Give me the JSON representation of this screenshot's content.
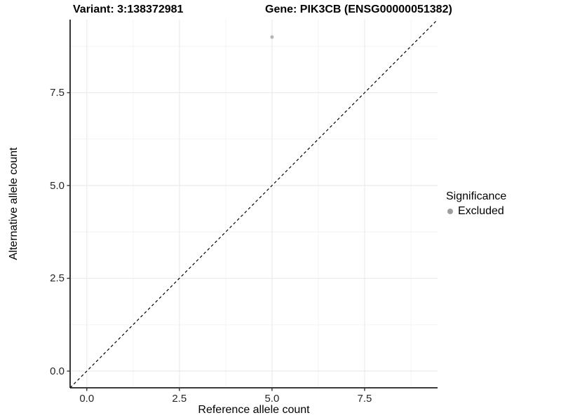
{
  "titles": {
    "variant": "Variant: 3:138372981",
    "gene": "Gene: PIK3CB (ENSG00000051382)"
  },
  "axes": {
    "x": {
      "label": "Reference allele count",
      "tick_labels": [
        "0.0",
        "2.5",
        "5.0",
        "7.5"
      ]
    },
    "y": {
      "label": "Alternative allele count",
      "tick_labels": [
        "0.0",
        "2.5",
        "5.0",
        "7.5"
      ]
    }
  },
  "legend": {
    "title": "Significance",
    "items": [
      {
        "label": "Excluded",
        "color": "#9e9e9e"
      }
    ]
  },
  "chart_data": {
    "type": "scatter",
    "title": "Variant: 3:138372981 | Gene: PIK3CB (ENSG00000051382)",
    "xlabel": "Reference allele count",
    "ylabel": "Alternative allele count",
    "xlim": [
      -0.45,
      9.47
    ],
    "ylim": [
      -0.45,
      9.47
    ],
    "x_ticks": [
      0.0,
      2.5,
      5.0,
      7.5
    ],
    "y_ticks": [
      0.0,
      2.5,
      5.0,
      7.5
    ],
    "grid": true,
    "minor_grid": true,
    "legend_position": "right",
    "series": [
      {
        "name": "Excluded",
        "color": "#b5b5b5",
        "points": [
          {
            "x": 5.0,
            "y": 9.0
          }
        ]
      }
    ],
    "reference_line": {
      "slope": 1,
      "intercept": 0,
      "style": "dashed",
      "color": "#000000"
    }
  },
  "colors": {
    "background": "#ffffff",
    "axis_line": "#1f1f1f",
    "tick_mark": "#333333",
    "tick_text": "#262626",
    "grid_major": "#ebebeb",
    "grid_minor": "#f4f4f4"
  }
}
